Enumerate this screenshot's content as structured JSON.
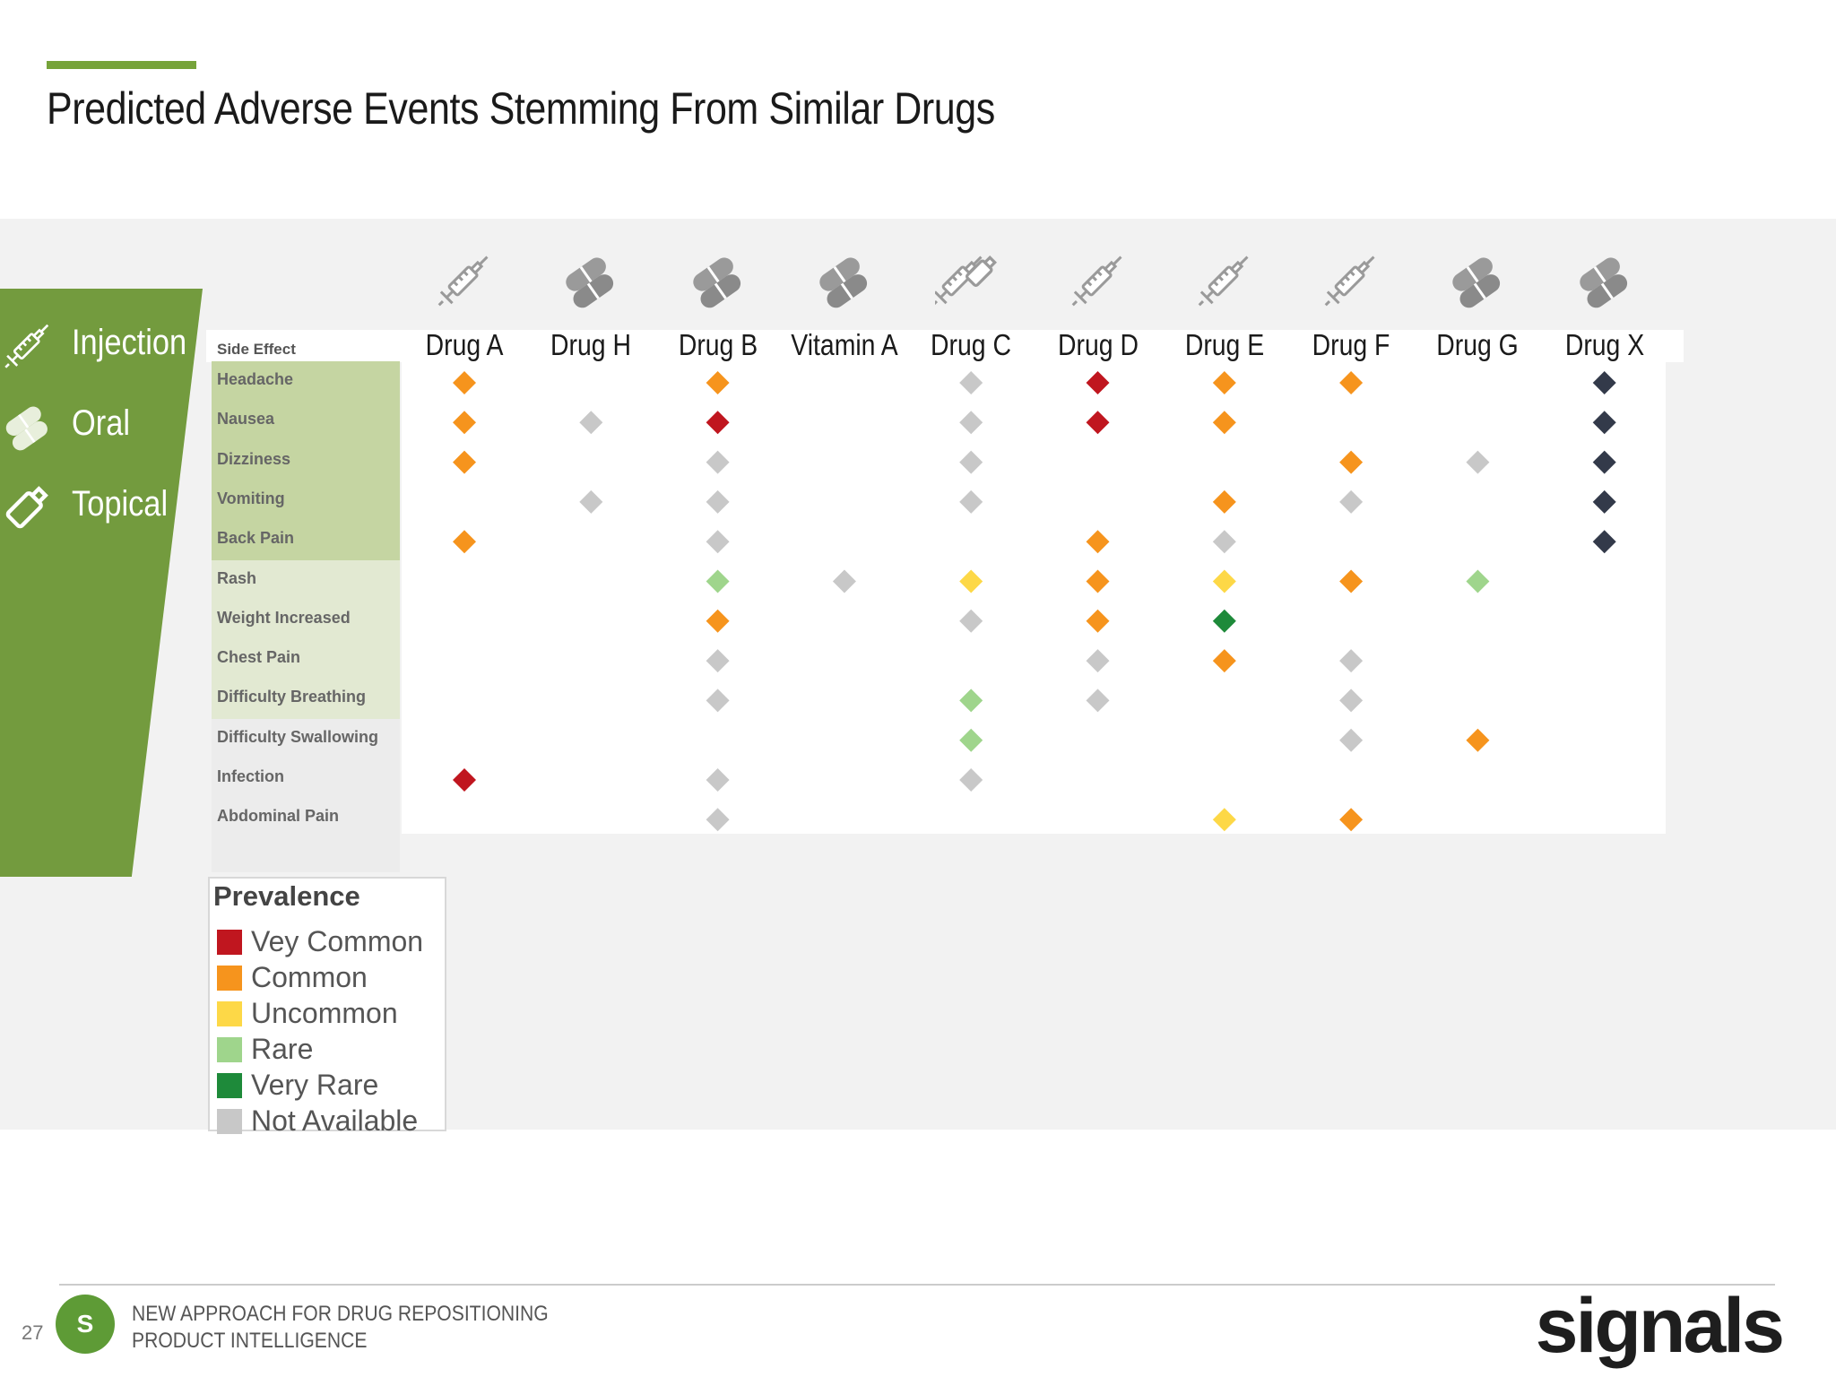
{
  "slide": {
    "title": "Predicted Adverse Events Stemming From Similar Drugs",
    "page_number": "27",
    "footer_line1": "NEW APPROACH FOR DRUG REPOSITIONING",
    "footer_line2": "PRODUCT INTELLIGENCE",
    "badge_letter": "S",
    "brand": "signals"
  },
  "routes": [
    {
      "label": "Injection",
      "icon": "syringe-icon"
    },
    {
      "label": "Oral",
      "icon": "pills-icon"
    },
    {
      "label": "Topical",
      "icon": "tube-icon"
    }
  ],
  "colors": {
    "accent": "#76a33a",
    "panel": "#739b3e",
    "Very Common": "#c0161f",
    "Common": "#f6941d",
    "Uncommon": "#fdd847",
    "Rare": "#9fd58c",
    "Very Rare": "#1e8a3a",
    "Not Available": "#c8c8c8",
    "Drug X": "#333a4a",
    "side_injection": "#c5d5a2",
    "side_oral": "#e2e9d2",
    "side_topical": "#ececec"
  },
  "legend": {
    "title": "Prevalence",
    "items": [
      {
        "label": "Vey Common",
        "color": "#c0161f"
      },
      {
        "label": "Common",
        "color": "#f6941d"
      },
      {
        "label": "Uncommon",
        "color": "#fdd847"
      },
      {
        "label": "Rare",
        "color": "#9fd58c"
      },
      {
        "label": "Very  Rare",
        "color": "#1e8a3a"
      },
      {
        "label": "Not Available",
        "color": "#c8c8c8"
      }
    ]
  },
  "chart_data": {
    "type": "heatmap",
    "title": "Predicted Adverse Events Stemming From Similar Drugs",
    "row_header": "Side Effect",
    "columns": [
      {
        "name": "Drug A",
        "icon": "syringe-icon"
      },
      {
        "name": "Drug H",
        "icon": "pills-icon"
      },
      {
        "name": "Drug B",
        "icon": "pills-icon"
      },
      {
        "name": "Vitamin A",
        "icon": "pills-icon"
      },
      {
        "name": "Drug C",
        "icon": "syringe-tube-icon"
      },
      {
        "name": "Drug D",
        "icon": "syringe-icon"
      },
      {
        "name": "Drug E",
        "icon": "syringe-icon"
      },
      {
        "name": "Drug F",
        "icon": "syringe-icon"
      },
      {
        "name": "Drug G",
        "icon": "pills-icon"
      },
      {
        "name": "Drug X",
        "icon": "pills-icon"
      }
    ],
    "rows": [
      {
        "name": "Headache",
        "group": "Injection"
      },
      {
        "name": "Nausea",
        "group": "Injection"
      },
      {
        "name": "Dizziness",
        "group": "Injection"
      },
      {
        "name": "Vomiting",
        "group": "Injection"
      },
      {
        "name": "Back Pain",
        "group": "Injection"
      },
      {
        "name": "Rash",
        "group": "Oral"
      },
      {
        "name": "Weight Increased",
        "group": "Oral"
      },
      {
        "name": "Chest Pain",
        "group": "Oral"
      },
      {
        "name": "Difficulty Breathing",
        "group": "Oral"
      },
      {
        "name": "Difficulty Swallowing",
        "group": "Topical"
      },
      {
        "name": "Infection",
        "group": "Topical"
      },
      {
        "name": "Abdominal Pain",
        "group": "Topical"
      }
    ],
    "cells": [
      [
        "Common",
        null,
        "Common",
        null,
        "Not Available",
        "Very Common",
        "Common",
        "Common",
        null,
        "Drug X"
      ],
      [
        "Common",
        "Not Available",
        "Very Common",
        null,
        "Not Available",
        "Very Common",
        "Common",
        null,
        null,
        "Drug X"
      ],
      [
        "Common",
        null,
        "Not Available",
        null,
        "Not Available",
        null,
        null,
        "Common",
        "Not Available",
        "Drug X"
      ],
      [
        null,
        "Not Available",
        "Not Available",
        null,
        "Not Available",
        null,
        "Common",
        "Not Available",
        null,
        "Drug X"
      ],
      [
        "Common",
        null,
        "Not Available",
        null,
        null,
        "Common",
        "Not Available",
        null,
        null,
        "Drug X"
      ],
      [
        null,
        null,
        "Rare",
        "Not Available",
        "Uncommon",
        "Common",
        "Uncommon",
        "Common",
        "Rare",
        null
      ],
      [
        null,
        null,
        "Common",
        null,
        "Not Available",
        "Common",
        "Very Rare",
        null,
        null,
        null
      ],
      [
        null,
        null,
        "Not Available",
        null,
        null,
        "Not Available",
        "Common",
        "Not Available",
        null,
        null
      ],
      [
        null,
        null,
        "Not Available",
        null,
        "Rare",
        "Not Available",
        null,
        "Not Available",
        null,
        null
      ],
      [
        null,
        null,
        null,
        null,
        "Rare",
        null,
        null,
        "Not Available",
        "Common",
        null
      ],
      [
        "Very Common",
        null,
        "Not Available",
        null,
        "Not Available",
        null,
        null,
        null,
        null,
        null
      ],
      [
        null,
        null,
        "Not Available",
        null,
        null,
        null,
        "Uncommon",
        "Common",
        null,
        null
      ]
    ]
  }
}
